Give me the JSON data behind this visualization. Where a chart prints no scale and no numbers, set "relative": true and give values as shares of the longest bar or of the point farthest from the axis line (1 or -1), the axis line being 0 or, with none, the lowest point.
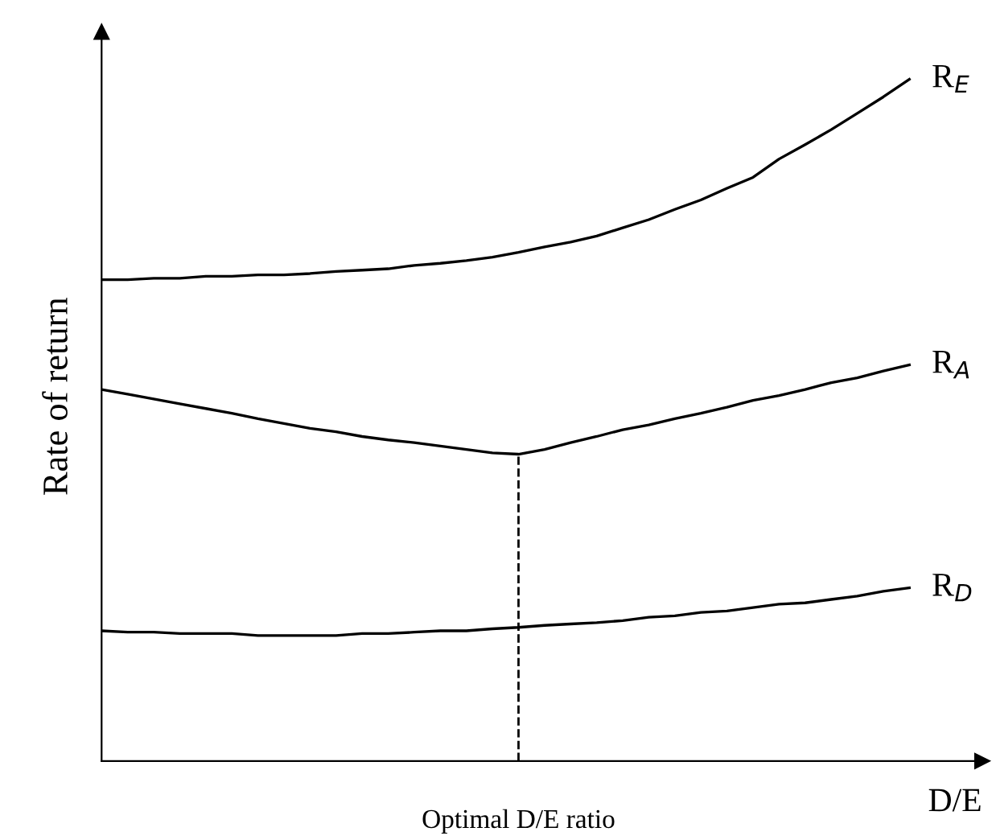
{
  "chart_data": {
    "type": "line",
    "relative": true,
    "ylabel": "Rate of return",
    "xlabel": "D/E",
    "line_style": "solid",
    "marker": "none",
    "categories": [
      null,
      null,
      null,
      null,
      null,
      null,
      null,
      null,
      null,
      null,
      null,
      null,
      null,
      null,
      null,
      null,
      null,
      null,
      null,
      null,
      null,
      null,
      null,
      null,
      null,
      null,
      null,
      null,
      null,
      null,
      null,
      null
    ],
    "series": [
      {
        "name": "R$_{E}$",
        "color": "#000000",
        "values": [
          0.706,
          0.706,
          0.708,
          0.708,
          0.711,
          0.711,
          0.713,
          0.713,
          0.715,
          0.718,
          0.72,
          0.722,
          0.727,
          0.73,
          0.734,
          0.739,
          0.746,
          0.754,
          0.761,
          0.77,
          0.782,
          0.794,
          0.809,
          0.823,
          0.84,
          0.856,
          0.883,
          0.904,
          0.926,
          0.95,
          0.974,
          1
        ]
      },
      {
        "name": "R$_{A}$",
        "color": "#000000",
        "values": [
          0.545,
          0.538,
          0.531,
          0.524,
          0.517,
          0.51,
          0.502,
          0.495,
          0.488,
          0.483,
          0.476,
          0.471,
          0.467,
          0.462,
          0.457,
          0.452,
          0.45,
          0.457,
          0.467,
          0.476,
          0.486,
          0.493,
          0.502,
          0.51,
          0.519,
          0.529,
          0.536,
          0.545,
          0.555,
          0.562,
          0.572,
          0.581
        ]
      },
      {
        "name": "R$_{D}$",
        "color": "#000000",
        "values": [
          0.191,
          0.189,
          0.189,
          0.187,
          0.187,
          0.187,
          0.184,
          0.184,
          0.184,
          0.184,
          0.187,
          0.187,
          0.189,
          0.191,
          0.191,
          0.194,
          0.196,
          0.199,
          0.201,
          0.203,
          0.206,
          0.211,
          0.213,
          0.218,
          0.22,
          0.225,
          0.23,
          0.232,
          0.237,
          0.242,
          0.249,
          0.254
        ]
      }
    ],
    "annotations": [
      "Optimal D/E ratio"
    ]
  }
}
